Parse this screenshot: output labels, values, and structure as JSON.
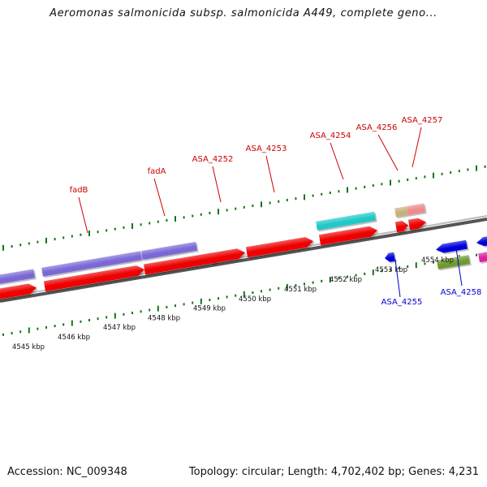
{
  "title": "Aeromonas salmonicida subsp. salmonicida A449, complete geno...",
  "footer": {
    "accession": "Accession: NC_009348",
    "summary": "Topology: circular; Length: 4,702,402 bp; Genes: 4,231"
  },
  "colors": {
    "forward_cds": "#ee0000",
    "reverse_cds": "#0000dd",
    "label_forward": "#cc0000",
    "label_reverse": "#0000cc",
    "backbone": "#888888",
    "ticks": "#117711",
    "purple_track": "#7b68d6",
    "cyan_track": "#20c8c8",
    "tan_track": "#c8b07a",
    "pink_track": "#f08a8a",
    "olive_track": "#6f9a2e",
    "magenta_track": "#e020a0"
  },
  "scale_labels": [
    "4545 kbp",
    "4546 kbp",
    "4547 kbp",
    "4548 kbp",
    "4549 kbp",
    "4550 kbp",
    "4551 kbp",
    "4552 kbp",
    "4553 kbp",
    "4554 kbp"
  ],
  "gene_labels": [
    {
      "id": "fadB",
      "strand": "forward"
    },
    {
      "id": "fadA",
      "strand": "forward"
    },
    {
      "id": "ASA_4252",
      "strand": "forward"
    },
    {
      "id": "ASA_4253",
      "strand": "forward"
    },
    {
      "id": "ASA_4254",
      "strand": "forward"
    },
    {
      "id": "ASA_4256",
      "strand": "forward"
    },
    {
      "id": "ASA_4257",
      "strand": "forward"
    },
    {
      "id": "ASA_4255",
      "strand": "reverse"
    },
    {
      "id": "ASA_4258",
      "strand": "reverse"
    }
  ]
}
